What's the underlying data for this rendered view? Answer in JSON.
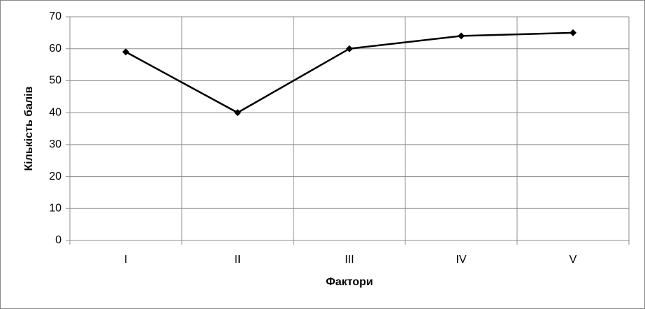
{
  "chart_data": {
    "type": "line",
    "x_label": "Фактори",
    "y_label": "Кількість балів",
    "categories": [
      "I",
      "II",
      "III",
      "IV",
      "V"
    ],
    "values": [
      59,
      40,
      60,
      64,
      65
    ],
    "color": "#000000",
    "marker": "diamond",
    "ylim": [
      0,
      70
    ],
    "yticks": [
      0,
      10,
      20,
      30,
      40,
      50,
      60,
      70
    ],
    "grid": true
  }
}
